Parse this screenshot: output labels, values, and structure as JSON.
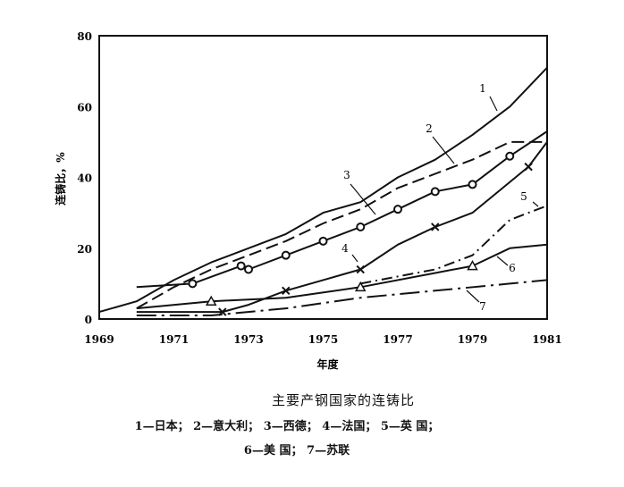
{
  "chart_data": {
    "type": "line",
    "title": "主要产钢国家的连铸比",
    "xlabel": "年度",
    "ylabel": "连铸比，%",
    "xlim": [
      1969,
      1981
    ],
    "ylim": [
      0,
      80
    ],
    "xticks": [
      "1969",
      "1971",
      "1973",
      "1975",
      "1977",
      "1979",
      "1981"
    ],
    "yticks": [
      "0",
      "20",
      "40",
      "60",
      "80"
    ],
    "grid": false,
    "legend_position": "caption below chart",
    "series": [
      {
        "id": "1",
        "name": "日本",
        "style": "solid",
        "marker": "none",
        "x": [
          1969,
          1970,
          1971,
          1972,
          1973,
          1974,
          1975,
          1976,
          1977,
          1978,
          1979,
          1980,
          1981
        ],
        "values": [
          2,
          5,
          11,
          16,
          20,
          24,
          30,
          33,
          40,
          45,
          52,
          60,
          71
        ]
      },
      {
        "id": "2",
        "name": "意大利",
        "style": "dashed",
        "marker": "none",
        "x": [
          1970,
          1971,
          1972,
          1973,
          1974,
          1975,
          1976,
          1977,
          1978,
          1979,
          1980,
          1981
        ],
        "values": [
          3,
          9,
          14,
          18,
          22,
          27,
          31,
          37,
          41,
          45,
          50,
          50
        ]
      },
      {
        "id": "3",
        "name": "西德",
        "style": "solid",
        "marker": "circle",
        "x": [
          1970,
          1971.5,
          1972.8,
          1973,
          1974,
          1975,
          1976,
          1977,
          1978,
          1979,
          1980,
          1981
        ],
        "values": [
          9,
          10,
          15,
          14,
          18,
          22,
          26,
          31,
          36,
          38,
          46,
          53
        ]
      },
      {
        "id": "4",
        "name": "法国",
        "style": "solid",
        "marker": "x",
        "x": [
          1970,
          1972.3,
          1973,
          1974,
          1975,
          1976,
          1977,
          1978,
          1979,
          1980.5,
          1981
        ],
        "values": [
          2,
          2,
          4,
          8,
          11,
          14,
          21,
          26,
          30,
          43,
          50
        ]
      },
      {
        "id": "5",
        "name": "英国",
        "style": "dash-dot",
        "marker": "none",
        "x": [
          1976,
          1977,
          1978,
          1979,
          1980,
          1981
        ],
        "values": [
          10,
          12,
          14,
          18,
          28,
          32
        ]
      },
      {
        "id": "6",
        "name": "美国",
        "style": "solid",
        "marker": "triangle",
        "x": [
          1970,
          1972,
          1974,
          1976,
          1978,
          1979,
          1980,
          1981
        ],
        "values": [
          3,
          5,
          6,
          9,
          13,
          15,
          20,
          21
        ]
      },
      {
        "id": "7",
        "name": "苏联",
        "style": "long-dash-dot",
        "marker": "none",
        "x": [
          1970,
          1972,
          1974,
          1976,
          1978,
          1980,
          1981
        ],
        "values": [
          1,
          1,
          3,
          6,
          8,
          10,
          11
        ]
      }
    ],
    "annotations": [
      "1",
      "2",
      "3",
      "4",
      "5",
      "6",
      "7"
    ]
  },
  "caption": {
    "title": "主要产钢国家的连铸比",
    "legend_line1": "1—日本； 2—意大利； 3—西德； 4—法国； 5—英 国；",
    "legend_line2": "6—美 国； 7—苏联"
  }
}
